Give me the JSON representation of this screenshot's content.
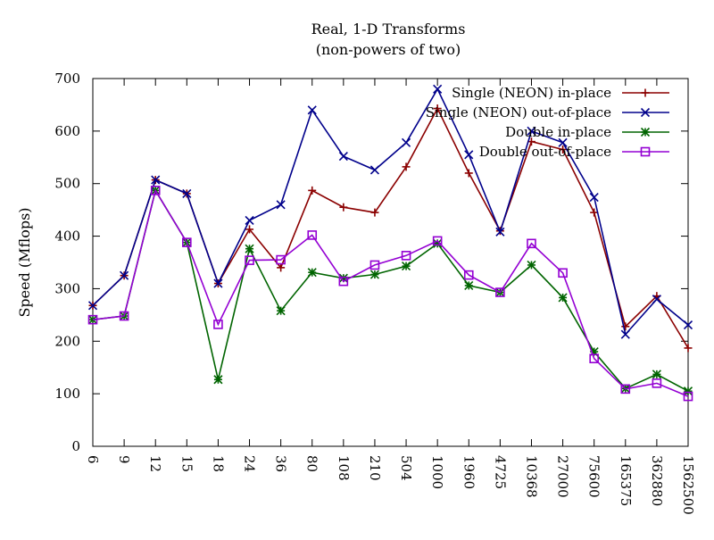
{
  "chart_data": {
    "type": "line",
    "title": "Real, 1-D Transforms",
    "subtitle": "(non-powers of two)",
    "xlabel": "",
    "ylabel": "Speed (Mflops)",
    "ylim": [
      0,
      700
    ],
    "yticks": [
      0,
      100,
      200,
      300,
      400,
      500,
      600,
      700
    ],
    "categories": [
      "6",
      "9",
      "12",
      "15",
      "18",
      "24",
      "36",
      "80",
      "108",
      "210",
      "504",
      "1000",
      "1960",
      "4725",
      "10368",
      "27000",
      "75600",
      "165375",
      "362880",
      "1562500"
    ],
    "grid": false,
    "legend_position": "top-right",
    "series": [
      {
        "name": "Single (NEON) in-place",
        "color": "#8b0000",
        "marker": "plus",
        "values": [
          268,
          325,
          507,
          481,
          310,
          413,
          340,
          487,
          455,
          445,
          532,
          643,
          520,
          410,
          580,
          565,
          445,
          228,
          286,
          187
        ]
      },
      {
        "name": "Single (NEON) out-of-place",
        "color": "#00008b",
        "marker": "cross",
        "values": [
          268,
          325,
          507,
          481,
          310,
          430,
          460,
          640,
          552,
          526,
          578,
          680,
          555,
          408,
          600,
          578,
          474,
          213,
          280,
          231
        ]
      },
      {
        "name": "Double in-place",
        "color": "#006400",
        "marker": "star",
        "values": [
          241,
          248,
          487,
          388,
          127,
          376,
          258,
          331,
          320,
          327,
          343,
          386,
          306,
          293,
          345,
          283,
          180,
          110,
          137,
          105
        ]
      },
      {
        "name": "Double out-of-place",
        "color": "#9400d3",
        "marker": "square",
        "values": [
          241,
          248,
          487,
          388,
          232,
          354,
          355,
          402,
          314,
          345,
          363,
          391,
          326,
          293,
          386,
          330,
          167,
          109,
          120,
          95
        ]
      }
    ]
  }
}
